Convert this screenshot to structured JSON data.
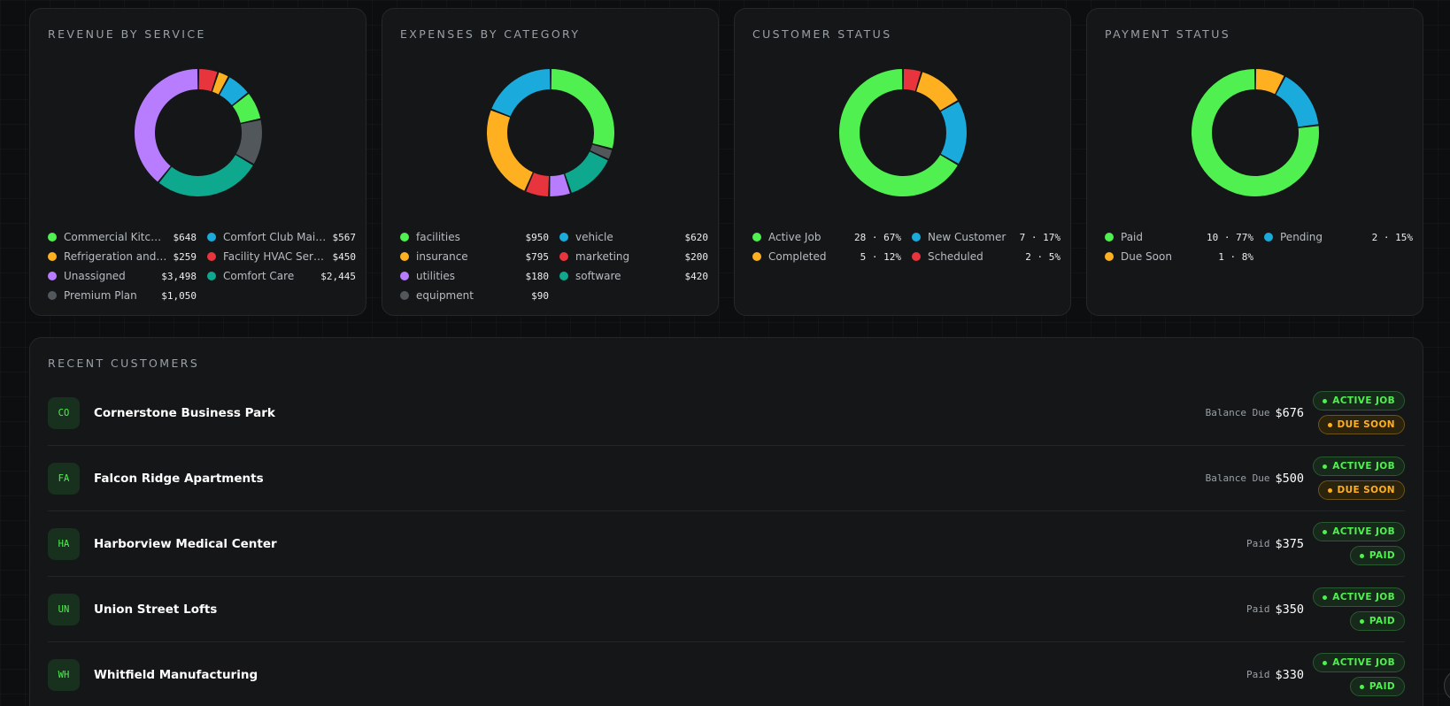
{
  "colors": {
    "green": "#4ff04f",
    "cyan": "#1aabdc",
    "amber": "#ffb020",
    "red": "#e8343c",
    "purple": "#b87cff",
    "teal": "#0ea88e",
    "gray": "#52575c"
  },
  "cards": [
    {
      "title": "REVENUE BY SERVICE",
      "legend": [
        {
          "label": "Commercial Kitche...",
          "value": "$648",
          "color": "green"
        },
        {
          "label": "Comfort Club Main...",
          "value": "$567",
          "color": "cyan"
        },
        {
          "label": "Refrigeration and ...",
          "value": "$259",
          "color": "amber"
        },
        {
          "label": "Facility HVAC Servi...",
          "value": "$450",
          "color": "red"
        },
        {
          "label": "Unassigned",
          "value": "$3,498",
          "color": "purple"
        },
        {
          "label": "Comfort Care",
          "value": "$2,445",
          "color": "teal"
        },
        {
          "label": "Premium Plan",
          "value": "$1,050",
          "color": "gray"
        }
      ]
    },
    {
      "title": "EXPENSES BY CATEGORY",
      "legend": [
        {
          "label": "facilities",
          "value": "$950",
          "color": "green"
        },
        {
          "label": "vehicle",
          "value": "$620",
          "color": "cyan"
        },
        {
          "label": "insurance",
          "value": "$795",
          "color": "amber"
        },
        {
          "label": "marketing",
          "value": "$200",
          "color": "red"
        },
        {
          "label": "utilities",
          "value": "$180",
          "color": "purple"
        },
        {
          "label": "software",
          "value": "$420",
          "color": "teal"
        },
        {
          "label": "equipment",
          "value": "$90",
          "color": "gray"
        }
      ]
    },
    {
      "title": "CUSTOMER STATUS",
      "legend": [
        {
          "label": "Active Job",
          "value": "28 · 67%",
          "color": "green"
        },
        {
          "label": "New Customer",
          "value": "7 · 17%",
          "color": "cyan"
        },
        {
          "label": "Completed",
          "value": "5 · 12%",
          "color": "amber"
        },
        {
          "label": "Scheduled",
          "value": "2 · 5%",
          "color": "red"
        }
      ]
    },
    {
      "title": "PAYMENT STATUS",
      "legend": [
        {
          "label": "Paid",
          "value": "10 · 77%",
          "color": "green"
        },
        {
          "label": "Pending",
          "value": "2 · 15%",
          "color": "cyan"
        },
        {
          "label": "Due Soon",
          "value": "1 · 8%",
          "color": "amber"
        }
      ]
    }
  ],
  "chart_data": [
    {
      "type": "pie",
      "title": "REVENUE BY SERVICE",
      "categories": [
        "Commercial Kitche...",
        "Comfort Club Main...",
        "Refrigeration and ...",
        "Facility HVAC Servi...",
        "Unassigned",
        "Comfort Care",
        "Premium Plan"
      ],
      "values": [
        648,
        567,
        259,
        450,
        3498,
        2445,
        1050
      ],
      "colors": [
        "red",
        "amber",
        "cyan",
        "green",
        "gray",
        "teal",
        "purple"
      ],
      "order": [
        3,
        2,
        1,
        0,
        6,
        5,
        4
      ]
    },
    {
      "type": "pie",
      "title": "EXPENSES BY CATEGORY",
      "categories": [
        "facilities",
        "vehicle",
        "insurance",
        "marketing",
        "utilities",
        "software",
        "equipment"
      ],
      "values": [
        950,
        620,
        795,
        200,
        180,
        420,
        90
      ],
      "order": [
        0,
        6,
        5,
        4,
        3,
        2,
        1
      ]
    },
    {
      "type": "pie",
      "title": "CUSTOMER STATUS",
      "categories": [
        "Active Job",
        "New Customer",
        "Completed",
        "Scheduled"
      ],
      "values": [
        28,
        7,
        5,
        2
      ],
      "order": [
        3,
        2,
        1,
        0
      ]
    },
    {
      "type": "pie",
      "title": "PAYMENT STATUS",
      "categories": [
        "Paid",
        "Pending",
        "Due Soon"
      ],
      "values": [
        10,
        2,
        1
      ],
      "order": [
        2,
        1,
        0
      ]
    }
  ],
  "recent": {
    "title": "RECENT CUSTOMERS",
    "customers": [
      {
        "initials": "CO",
        "name": "Cornerstone Business Park",
        "balance_label": "Balance Due",
        "balance": "$676",
        "status": "ACTIVE JOB",
        "payment": "DUE SOON",
        "payment_tone": "amber"
      },
      {
        "initials": "FA",
        "name": "Falcon Ridge Apartments",
        "balance_label": "Balance Due",
        "balance": "$500",
        "status": "ACTIVE JOB",
        "payment": "DUE SOON",
        "payment_tone": "amber"
      },
      {
        "initials": "HA",
        "name": "Harborview Medical Center",
        "balance_label": "Paid",
        "balance": "$375",
        "status": "ACTIVE JOB",
        "payment": "PAID",
        "payment_tone": "green"
      },
      {
        "initials": "UN",
        "name": "Union Street Lofts",
        "balance_label": "Paid",
        "balance": "$350",
        "status": "ACTIVE JOB",
        "payment": "PAID",
        "payment_tone": "green"
      },
      {
        "initials": "WH",
        "name": "Whitfield Manufacturing",
        "balance_label": "Paid",
        "balance": "$330",
        "status": "ACTIVE JOB",
        "payment": "PAID",
        "payment_tone": "green"
      }
    ]
  }
}
